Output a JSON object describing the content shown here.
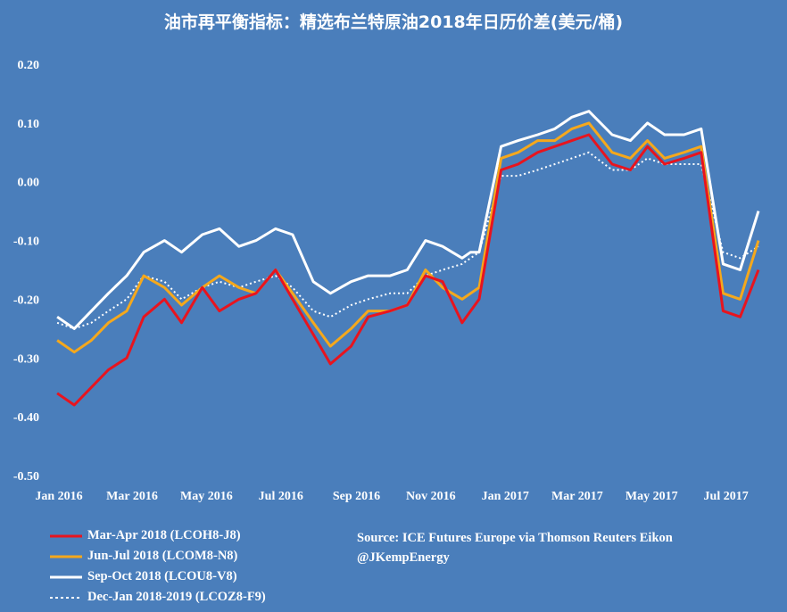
{
  "title": "油市再平衡指标：精选布兰特原油2018年日历价差(美元/桶)",
  "source_lines": [
    "Source: ICE Futures Europe via Thomson Reuters Eikon",
    "@JKempEnergy"
  ],
  "colors": {
    "background": "#4A7EBB",
    "red": "#E8141E",
    "orange": "#F5A81C",
    "white": "#FFFFFF"
  },
  "chart_data": {
    "type": "line",
    "title": "油市再平衡指标：精选布兰特原油2018年日历价差(美元/桶)",
    "xlabel": "",
    "ylabel": "",
    "ylim": [
      -0.5,
      0.2
    ],
    "y_ticks": [
      "0.20",
      "0.10",
      "0.00",
      "-0.10",
      "-0.20",
      "-0.30",
      "-0.40",
      "-0.50"
    ],
    "x_tick_labels": [
      "Jan 2016",
      "Mar 2016",
      "May 2016",
      "Jul 2016",
      "Sep 2016",
      "Nov 2016",
      "Jan 2017",
      "Mar 2017",
      "May 2017",
      "Jul 2017"
    ],
    "x_range": [
      "2016-01",
      "2017-08"
    ],
    "grid": false,
    "legend_position": "bottom-left",
    "x": [
      "2016-01-04",
      "2016-01-18",
      "2016-02-01",
      "2016-02-15",
      "2016-03-01",
      "2016-03-15",
      "2016-04-01",
      "2016-04-15",
      "2016-05-02",
      "2016-05-16",
      "2016-06-01",
      "2016-06-15",
      "2016-07-01",
      "2016-07-15",
      "2016-08-01",
      "2016-08-15",
      "2016-09-01",
      "2016-09-15",
      "2016-10-03",
      "2016-10-17",
      "2016-11-01",
      "2016-11-15",
      "2016-12-01",
      "2016-12-08",
      "2016-12-15",
      "2017-01-02",
      "2017-01-16",
      "2017-02-01",
      "2017-02-15",
      "2017-03-01",
      "2017-03-15",
      "2017-04-03",
      "2017-04-18",
      "2017-05-02",
      "2017-05-16",
      "2017-06-01",
      "2017-06-15",
      "2017-07-03",
      "2017-07-17",
      "2017-08-01"
    ],
    "series": [
      {
        "name": "Mar-Apr 2018 (LCOH8-J8)",
        "style": "solid",
        "color": "#E8141E",
        "values": [
          -0.36,
          -0.38,
          -0.35,
          -0.32,
          -0.3,
          -0.23,
          -0.2,
          -0.24,
          -0.18,
          -0.22,
          -0.2,
          -0.19,
          -0.15,
          -0.2,
          -0.26,
          -0.31,
          -0.28,
          -0.23,
          -0.22,
          -0.21,
          -0.16,
          -0.17,
          -0.24,
          -0.22,
          -0.2,
          0.02,
          0.03,
          0.05,
          0.06,
          0.07,
          0.08,
          0.03,
          0.02,
          0.06,
          0.03,
          0.04,
          0.05,
          -0.22,
          -0.23,
          -0.15
        ]
      },
      {
        "name": "Jun-Jul 2018 (LCOM8-N8)",
        "style": "solid",
        "color": "#F5A81C",
        "values": [
          -0.27,
          -0.29,
          -0.27,
          -0.24,
          -0.22,
          -0.16,
          -0.18,
          -0.21,
          -0.18,
          -0.16,
          -0.18,
          -0.19,
          -0.15,
          -0.19,
          -0.24,
          -0.28,
          -0.25,
          -0.22,
          -0.22,
          -0.21,
          -0.15,
          -0.18,
          -0.2,
          -0.19,
          -0.18,
          0.04,
          0.05,
          0.07,
          0.07,
          0.09,
          0.1,
          0.05,
          0.04,
          0.07,
          0.04,
          0.05,
          0.06,
          -0.19,
          -0.2,
          -0.1
        ]
      },
      {
        "name": "Sep-Oct 2018 (LCOU8-V8)",
        "style": "solid",
        "color": "#FFFFFF",
        "values": [
          -0.23,
          -0.25,
          -0.22,
          -0.19,
          -0.16,
          -0.12,
          -0.1,
          -0.12,
          -0.09,
          -0.08,
          -0.11,
          -0.1,
          -0.08,
          -0.09,
          -0.17,
          -0.19,
          -0.17,
          -0.16,
          -0.16,
          -0.15,
          -0.1,
          -0.11,
          -0.13,
          -0.12,
          -0.12,
          0.06,
          0.07,
          0.08,
          0.09,
          0.11,
          0.12,
          0.08,
          0.07,
          0.1,
          0.08,
          0.08,
          0.09,
          -0.14,
          -0.15,
          -0.05
        ]
      },
      {
        "name": "Dec-Jan 2018-2019 (LCOZ8-F9)",
        "style": "dotted",
        "color": "#FFFFFF",
        "values": [
          -0.24,
          -0.25,
          -0.24,
          -0.22,
          -0.2,
          -0.16,
          -0.17,
          -0.2,
          -0.18,
          -0.17,
          -0.18,
          -0.17,
          -0.16,
          -0.18,
          -0.22,
          -0.23,
          -0.21,
          -0.2,
          -0.19,
          -0.19,
          -0.16,
          -0.15,
          -0.14,
          -0.13,
          -0.12,
          0.01,
          0.01,
          0.02,
          0.03,
          0.04,
          0.05,
          0.02,
          0.02,
          0.04,
          0.03,
          0.03,
          0.03,
          -0.12,
          -0.13,
          -0.11
        ]
      }
    ]
  }
}
